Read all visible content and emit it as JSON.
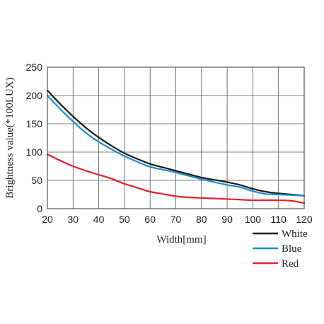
{
  "chart_data": {
    "type": "line",
    "title": "",
    "xlabel": "Width[mm]",
    "ylabel": "Brightness value(*100LUX)",
    "xlim": [
      20,
      120
    ],
    "ylim": [
      0,
      250
    ],
    "xticks": [
      20,
      30,
      40,
      50,
      60,
      70,
      80,
      90,
      100,
      110,
      120
    ],
    "yticks": [
      0,
      50,
      100,
      150,
      200,
      250
    ],
    "grid": true,
    "legend_position": "bottom-right",
    "x": [
      20,
      25,
      30,
      35,
      40,
      45,
      50,
      55,
      60,
      65,
      70,
      75,
      80,
      85,
      90,
      95,
      100,
      105,
      110,
      115,
      120
    ],
    "series": [
      {
        "name": "White",
        "color": "#1a1a1a",
        "values": [
          209,
          185,
          163,
          143,
          126,
          111,
          98,
          88,
          79,
          73,
          67,
          61,
          55,
          51,
          47,
          42,
          35,
          30,
          27,
          25,
          23
        ]
      },
      {
        "name": "Blue",
        "color": "#1b8fd0",
        "values": [
          200,
          176,
          154,
          134,
          118,
          105,
          93,
          83,
          74,
          69,
          64,
          58,
          52,
          47,
          42,
          38,
          31,
          26,
          25,
          24,
          23
        ]
      },
      {
        "name": "Red",
        "color": "#e8202a",
        "values": [
          96,
          85,
          75,
          67,
          60,
          53,
          44,
          37,
          30,
          26,
          22,
          20,
          19,
          18,
          17,
          16,
          15,
          15,
          15,
          14,
          10
        ]
      }
    ]
  }
}
